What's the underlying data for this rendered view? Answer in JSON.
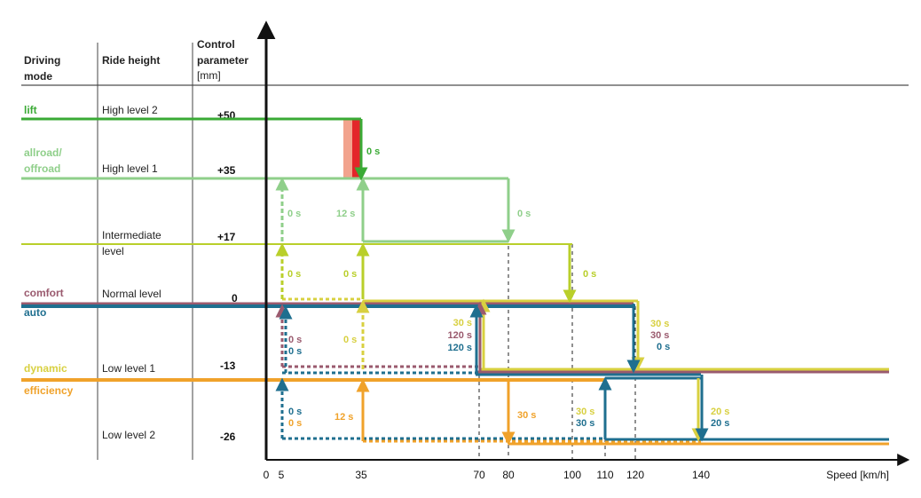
{
  "colors": {
    "lift": "#3aaa35",
    "allroad": "#8fcf8a",
    "intermediate": "#b9cf2a",
    "dynamic": "#d8d040",
    "comfort": "#9a5a6e",
    "auto": "#1f6f8f",
    "efficiency": "#f0a22a",
    "axis": "#111111",
    "grid": "#222222"
  },
  "header": {
    "col1_line1": "Driving",
    "col1_line2": "mode",
    "col2": "Ride height",
    "col3_line1": "Control",
    "col3_line2": "parameter",
    "col3_line3": "[mm]"
  },
  "rows": {
    "lift": {
      "mode": "lift",
      "height": "High level 2",
      "value": "+50"
    },
    "allroad": {
      "mode1": "allroad/",
      "mode2": "offroad",
      "height": "High level 1",
      "value": "+35"
    },
    "intermediate": {
      "height1": "Intermediate",
      "height2": "level",
      "value": "+17"
    },
    "normal": {
      "mode_comfort": "comfort",
      "mode_auto": "auto",
      "height": "Normal level",
      "value": "0"
    },
    "low1": {
      "mode_dynamic": "dynamic",
      "mode_efficiency": "efficiency",
      "height": "Low level 1",
      "value": "-13"
    },
    "low2": {
      "height": "Low level 2",
      "value": "-26"
    }
  },
  "axis": {
    "xlabel": "Speed [km/h]",
    "ticks": [
      "0",
      "5",
      "35",
      "70",
      "80",
      "100",
      "110",
      "120",
      "140"
    ]
  },
  "time_labels": {
    "lift_down": "0 s",
    "allroad_up_5": "0 s",
    "allroad_up_35": "12 s",
    "allroad_down_80": "0 s",
    "inter_up_5": "0 s",
    "inter_up_35": "0 s",
    "inter_down_100": "0 s",
    "normal_up_5_comfort": "0 s",
    "normal_up_5_auto": "0 s",
    "normal_up_35": "0 s",
    "normal_up_70_dyn": "30 s",
    "normal_up_70_comfort": "120 s",
    "normal_up_70_auto": "120 s",
    "normal_down_120_dyn": "30 s",
    "normal_down_120_comfort": "30 s",
    "normal_down_120_auto": "0 s",
    "low1_up_5_auto": "0 s",
    "low1_up_5_eff": "0 s",
    "low1_up_35": "12 s",
    "low1_down_80": "30 s",
    "low1_up_110_dyn": "30 s",
    "low1_up_110_auto": "30 s",
    "low1_down_140_dyn": "20 s",
    "low1_down_140_auto": "20 s"
  }
}
